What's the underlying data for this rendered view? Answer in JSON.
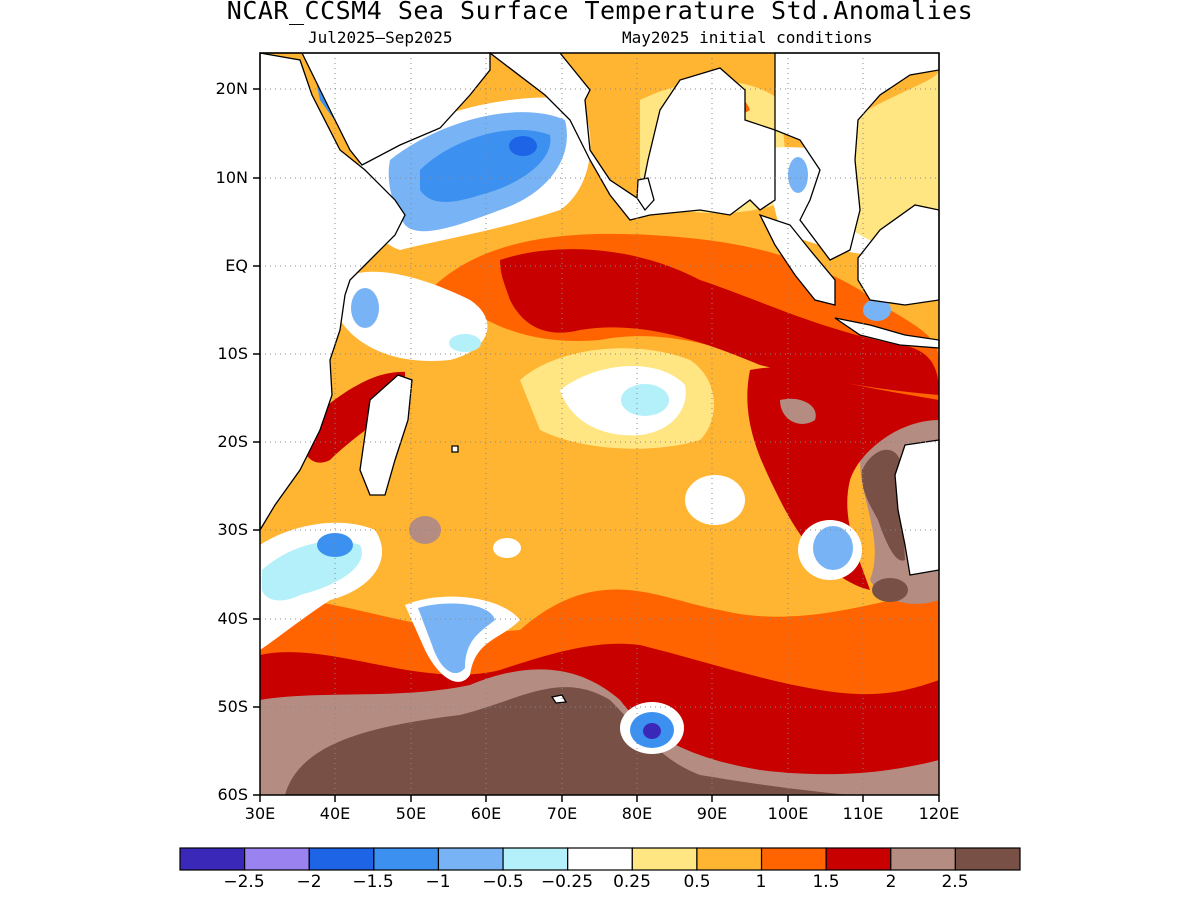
{
  "title": "NCAR_CCSM4 Sea Surface Temperature Std.Anomalies",
  "subtitle_left": "Jul2025–Sep2025",
  "subtitle_right": "May2025 initial conditions",
  "map": {
    "lon_range": [
      30,
      120
    ],
    "lat_range": [
      -60,
      24
    ],
    "y_ticks": [
      "20N",
      "10N",
      "EQ",
      "10S",
      "20S",
      "30S",
      "40S",
      "50S",
      "60S"
    ],
    "y_tick_values": [
      20,
      10,
      0,
      -10,
      -20,
      -30,
      -40,
      -50,
      -60
    ],
    "x_ticks": [
      "30E",
      "40E",
      "50E",
      "60E",
      "70E",
      "80E",
      "90E",
      "100E",
      "110E",
      "120E"
    ],
    "x_tick_values": [
      30,
      40,
      50,
      60,
      70,
      80,
      90,
      100,
      110,
      120
    ],
    "gridlines": "dotted"
  },
  "colorbar": {
    "labels": [
      "−2.5",
      "−2",
      "−1.5",
      "−1",
      "−0.5",
      "−0.25",
      "0.25",
      "0.5",
      "1",
      "1.5",
      "2",
      "2.5"
    ],
    "colors": [
      "#3a28b8",
      "#9a82f0",
      "#1e64e6",
      "#3c91f0",
      "#78b4f5",
      "#b4f0fa",
      "#ffffff",
      "#ffe682",
      "#ffb432",
      "#ff6400",
      "#c80000",
      "#b48c82",
      "#785046"
    ]
  },
  "colors": {
    "land": "#ffffff",
    "coast": "#000000"
  }
}
